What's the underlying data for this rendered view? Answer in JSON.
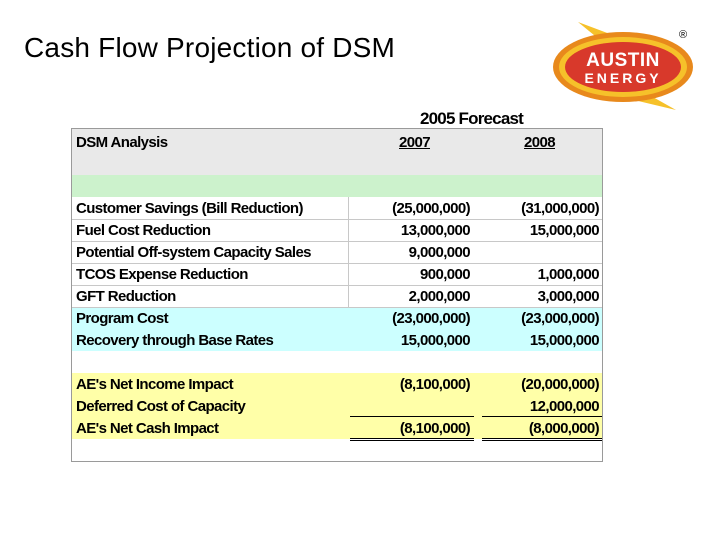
{
  "slide": {
    "title": "Cash Flow Projection of DSM",
    "logo": {
      "line1": "AUSTIN",
      "line2": "ENERGY",
      "mark": "®",
      "colors": {
        "orange": "#e8891c",
        "yellow": "#f6c12a",
        "red": "#d8392b"
      }
    }
  },
  "table": {
    "forecast_label": "2005 Forecast",
    "header": {
      "label": "DSM Analysis",
      "col1": "2007",
      "col2": "2008"
    },
    "rows": [
      {
        "label": "Customer Savings (Bill Reduction)",
        "v2007": "(25,000,000)",
        "v2008": "(31,000,000)"
      },
      {
        "label": "Fuel Cost Reduction",
        "v2007": "13,000,000",
        "v2008": "15,000,000"
      },
      {
        "label": "Potential Off-system Capacity Sales",
        "v2007": "9,000,000",
        "v2008": ""
      },
      {
        "label": "TCOS Expense Reduction",
        "v2007": "900,000",
        "v2008": "1,000,000"
      },
      {
        "label": "GFT Reduction",
        "v2007": "2,000,000",
        "v2008": "3,000,000"
      },
      {
        "label": "Program Cost",
        "v2007": "(23,000,000)",
        "v2008": "(23,000,000)"
      },
      {
        "label": "Recovery through Base Rates",
        "v2007": "15,000,000",
        "v2008": "15,000,000"
      },
      {
        "label": "AE's Net Income Impact",
        "v2007": "(8,100,000)",
        "v2008": "(20,000,000)"
      },
      {
        "label": "Deferred Cost of Capacity",
        "v2007": "",
        "v2008": "12,000,000"
      },
      {
        "label": "AE's Net Cash Impact",
        "v2007": "(8,100,000)",
        "v2008": "(8,000,000)"
      }
    ],
    "colors": {
      "header": "#e9e9e9",
      "green": "#ccf2cc",
      "cyan": "#ccffff",
      "yellow": "#ffffa8"
    }
  }
}
